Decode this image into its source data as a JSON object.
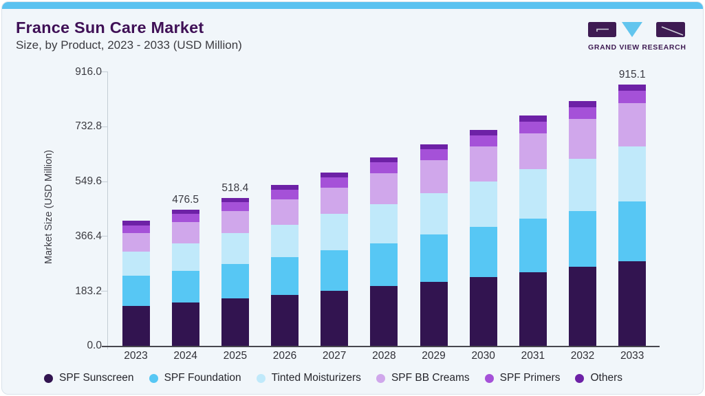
{
  "header": {
    "title": "France Sun Care Market",
    "subtitle": "Size, by Product, 2023 - 2033 (USD Million)",
    "logo_text": "GRAND VIEW RESEARCH"
  },
  "colors": {
    "card_background": "#f1f6fa",
    "top_bar": "#5ac2f0",
    "title_text": "#3f1056",
    "axis_line": "#47474e",
    "spine_and_ticks": "#c3ccd4",
    "logo_purple": "#3e1b52",
    "logo_blue": "#62c5ee"
  },
  "chart_data": {
    "type": "bar",
    "stacked": true,
    "title": "France Sun Care Market Size, by Product, 2023 - 2033 (USD Million)",
    "ylabel": "Market Size (USD Million)",
    "xlabel": "",
    "ylim": [
      0,
      916
    ],
    "yticks": [
      "916.0",
      "732.8",
      "549.6",
      "366.4",
      "183.2",
      "0.0"
    ],
    "grid": false,
    "legend_position": "bottom",
    "categories": [
      "2023",
      "2024",
      "2025",
      "2026",
      "2027",
      "2028",
      "2029",
      "2030",
      "2031",
      "2032",
      "2033"
    ],
    "series": [
      {
        "name": "SPF Sunscreen",
        "color": "#321450",
        "values": [
          139.7,
          150.9,
          166.2,
          178.9,
          192.6,
          210.2,
          223.9,
          240.8,
          256.7,
          276.0,
          296.2
        ]
      },
      {
        "name": "SPF Foundation",
        "color": "#57c7f4",
        "values": [
          105.0,
          111.6,
          119.4,
          130.8,
          142.1,
          148.6,
          166.9,
          175.8,
          188.8,
          196.7,
          208.5
        ]
      },
      {
        "name": "Tinted Moisturizers",
        "color": "#c0e9fa",
        "values": [
          84.3,
          95.8,
          108.9,
          113.2,
          128.3,
          136.3,
          144.5,
          158.9,
          174.1,
          183.0,
          193.6
        ]
      },
      {
        "name": "SPF BB Creams",
        "color": "#d0a7eb",
        "values": [
          66.0,
          75.0,
          77.8,
          90.8,
          90.8,
          110.0,
          113.9,
          121.8,
          124.5,
          138.9,
          151.7
        ]
      },
      {
        "name": "SPF Primers",
        "color": "#a551d8",
        "values": [
          26.5,
          28.2,
          30.6,
          33.7,
          36.3,
          37.8,
          38.9,
          40.1,
          41.5,
          42.0,
          42.4
        ]
      },
      {
        "name": "Others",
        "color": "#6d21a6",
        "values": [
          17.6,
          15.0,
          15.5,
          16.1,
          16.9,
          17.7,
          18.6,
          19.4,
          20.3,
          21.2,
          22.7
        ]
      }
    ],
    "totals": [
      439.1,
      476.5,
      518.4,
      563.5,
      607.0,
      660.6,
      706.7,
      756.8,
      805.9,
      857.8,
      915.1
    ],
    "total_labels": {
      "2024": "476.5",
      "2025": "518.4",
      "2033": "915.1"
    }
  }
}
